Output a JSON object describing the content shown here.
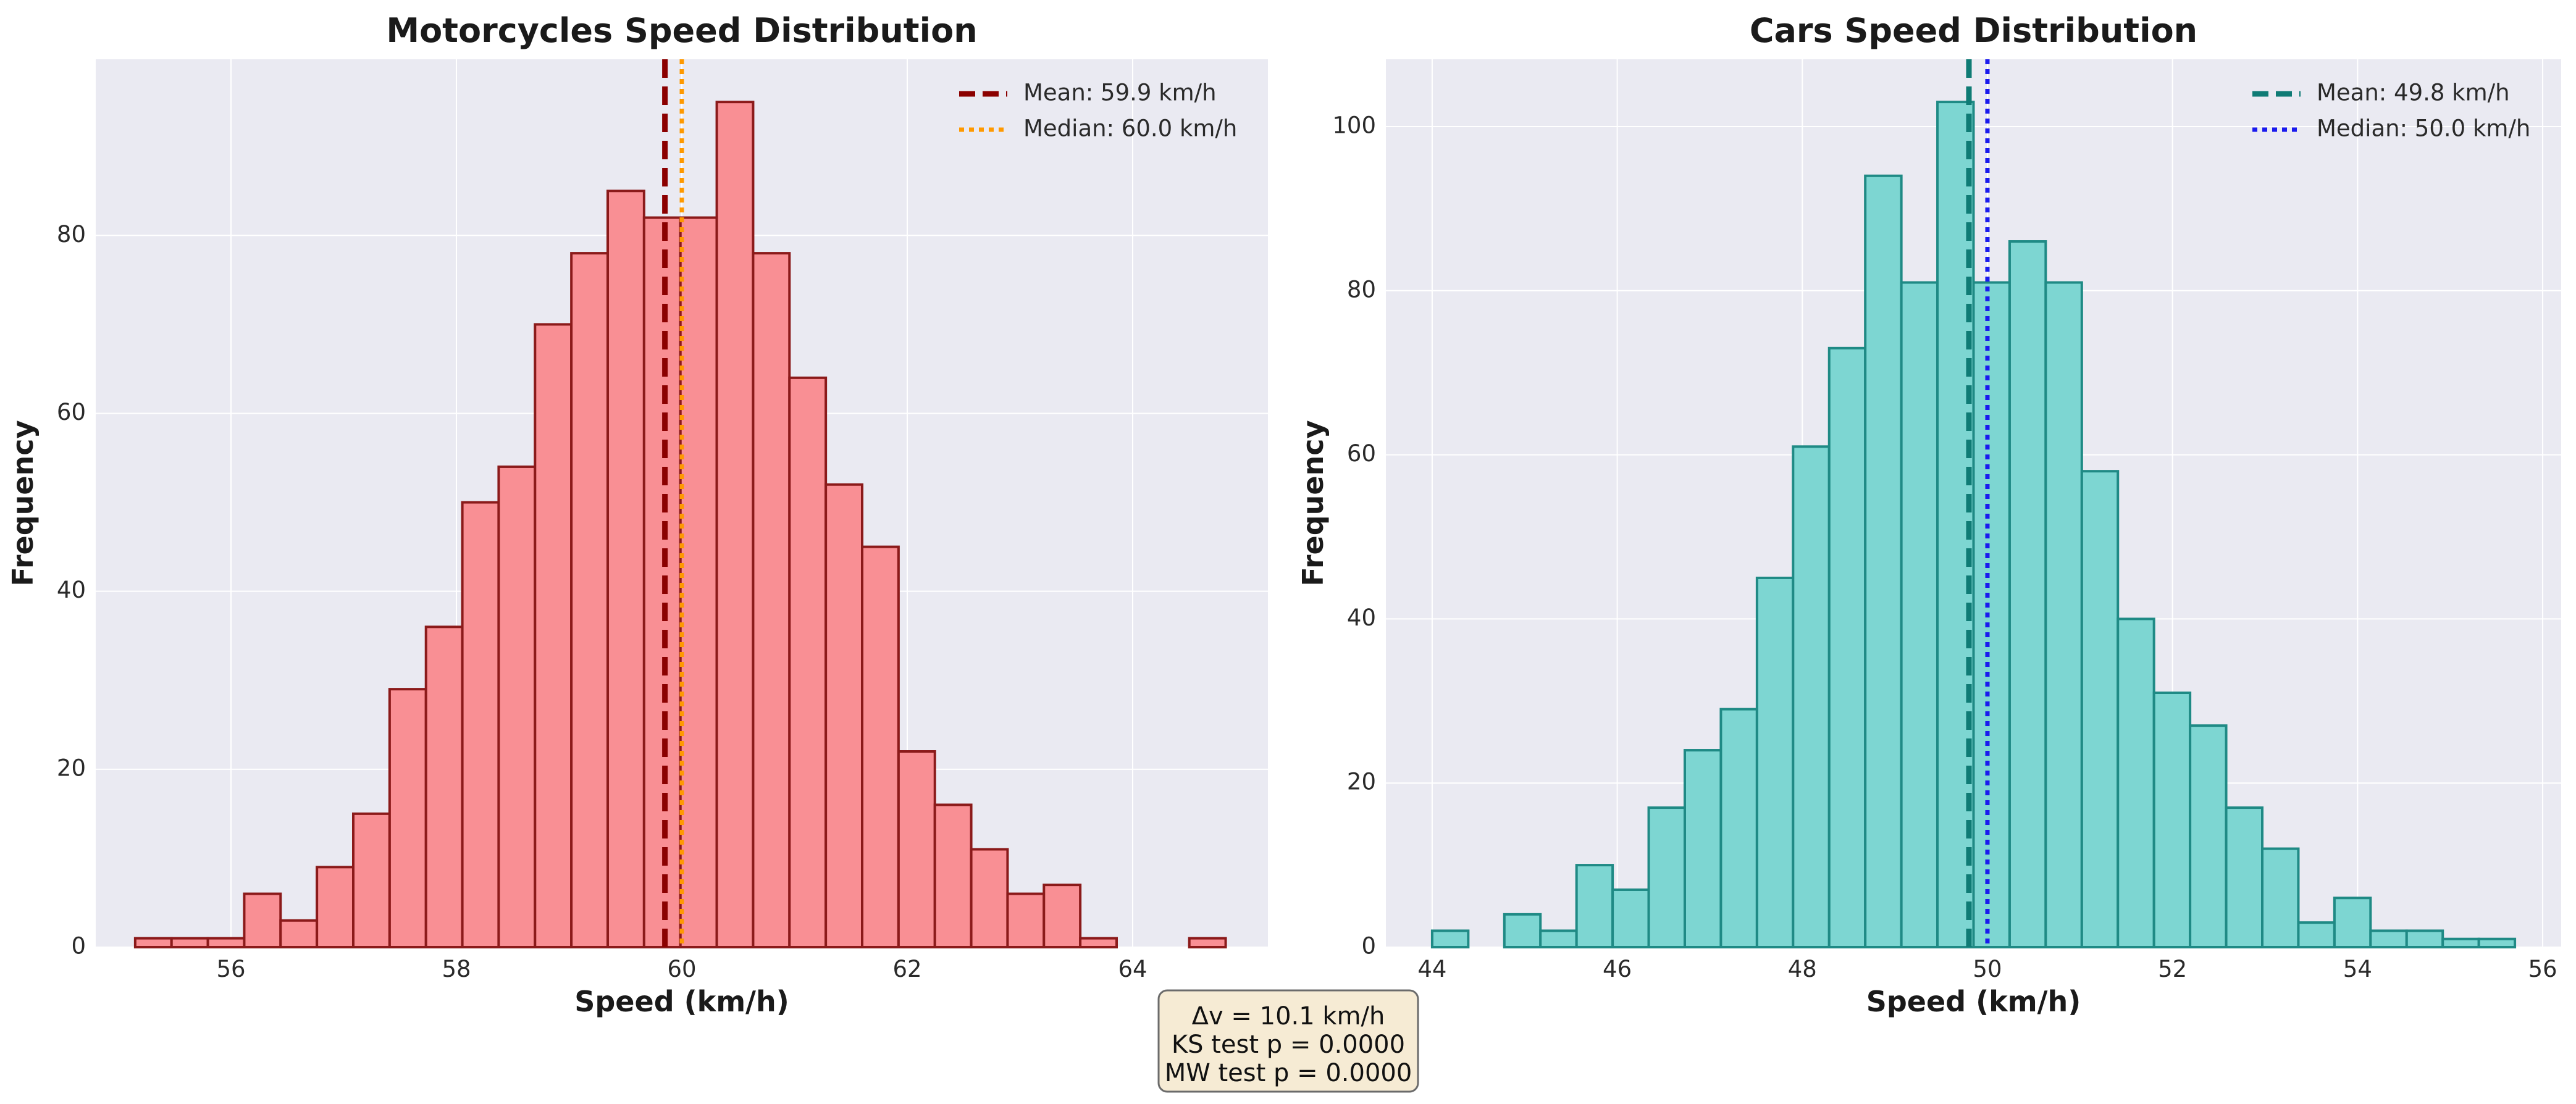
{
  "chart_data": [
    {
      "type": "bar",
      "title": "Motorcycles Speed Distribution",
      "xlabel": "Speed (km/h)",
      "ylabel": "Frequency",
      "xlim": [
        54.8,
        65.2
      ],
      "ylim": [
        0,
        99.8
      ],
      "x_ticks": [
        56,
        58,
        60,
        62,
        64
      ],
      "y_ticks": [
        0,
        20,
        40,
        60,
        80
      ],
      "bin_start": 55.15,
      "bin_width": 0.3225,
      "values": [
        1,
        1,
        1,
        6,
        3,
        9,
        15,
        29,
        36,
        50,
        54,
        70,
        78,
        85,
        82,
        82,
        95,
        78,
        64,
        52,
        45,
        22,
        16,
        11,
        6,
        7,
        1,
        0,
        0,
        1
      ],
      "bar_color": "#f98f94",
      "edge_color": "#8b1a1a",
      "reference_lines": [
        {
          "label": "Mean: 59.9 km/h",
          "x": 59.85,
          "color": "#8b0000",
          "style": "dashed"
        },
        {
          "label": "Median: 60.0 km/h",
          "x": 60.0,
          "color": "#ff9900",
          "style": "dotted"
        }
      ],
      "legend_position": "top-right",
      "grid": true
    },
    {
      "type": "bar",
      "title": "Cars Speed Distribution",
      "xlabel": "Speed (km/h)",
      "ylabel": "Frequency",
      "xlim": [
        43.5,
        56.2
      ],
      "ylim": [
        0,
        108.2
      ],
      "x_ticks": [
        44,
        46,
        48,
        50,
        52,
        54,
        56
      ],
      "y_ticks": [
        0,
        20,
        40,
        60,
        80,
        100
      ],
      "bin_start": 44.0,
      "bin_width": 0.39,
      "values": [
        2,
        0,
        4,
        2,
        10,
        7,
        17,
        24,
        29,
        45,
        61,
        73,
        94,
        81,
        103,
        81,
        86,
        81,
        58,
        40,
        31,
        27,
        17,
        12,
        3,
        6,
        2,
        2,
        1,
        1
      ],
      "bar_color": "#7dd6d2",
      "edge_color": "#1f8a85",
      "reference_lines": [
        {
          "label": "Mean: 49.8 km/h",
          "x": 49.8,
          "color": "#0f7b75",
          "style": "dashed"
        },
        {
          "label": "Median: 50.0 km/h",
          "x": 50.0,
          "color": "#1a1aee",
          "style": "dotted"
        }
      ],
      "legend_position": "top-right",
      "grid": true
    }
  ],
  "stats_box": {
    "line1": "Δv = 10.1 km/h",
    "line2": "KS test p = 0.0000",
    "line3": "MW test p = 0.0000"
  },
  "colors": {
    "plot_background": "#eaeaf2",
    "grid": "#ffffff",
    "stats_box_fill": "#f6ebd4",
    "stats_box_border": "#6b6b6b"
  }
}
